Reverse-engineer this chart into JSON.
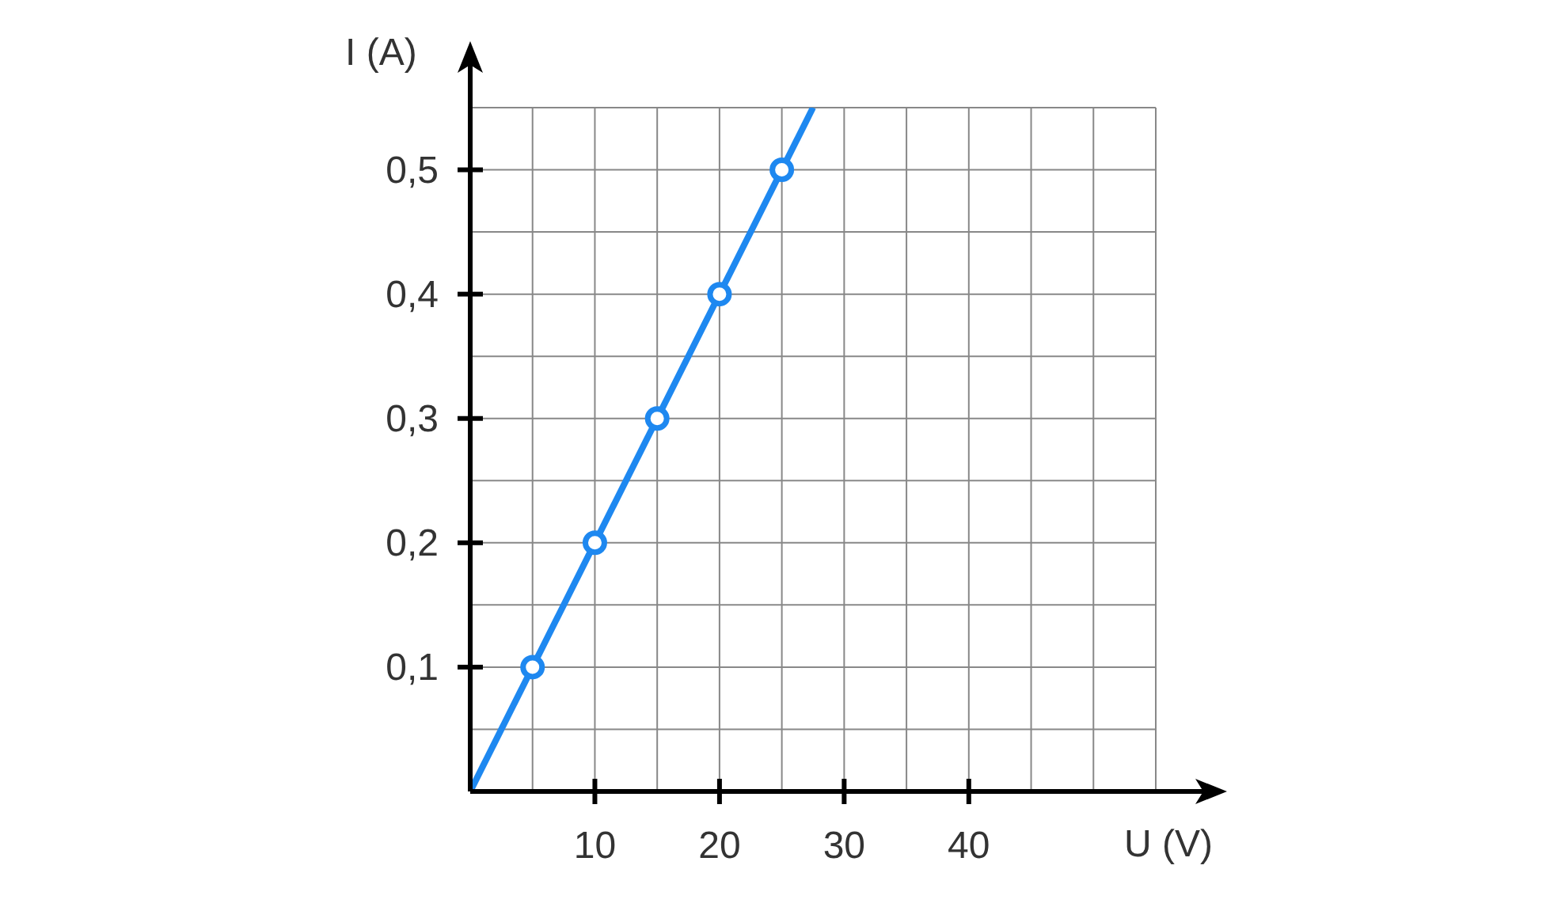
{
  "chart_data": {
    "type": "scatter",
    "xlabel": "U (V)",
    "ylabel": "I (A)",
    "xlim": [
      0,
      55
    ],
    "ylim": [
      0,
      0.55
    ],
    "xticks": [
      {
        "value": 5,
        "label": null
      },
      10,
      {
        "value": 15,
        "label": null
      },
      20,
      {
        "value": 25,
        "label": null
      },
      30,
      {
        "value": 35,
        "label": null
      },
      40,
      {
        "value": 45,
        "label": null
      },
      {
        "value": 50,
        "label": null
      },
      {
        "value": 55,
        "label": null
      }
    ],
    "yticks": [
      {
        "value": 0.05,
        "label": null
      },
      {
        "value": 0.1,
        "label": "0,1"
      },
      {
        "value": 0.15,
        "label": null
      },
      {
        "value": 0.2,
        "label": "0,2"
      },
      {
        "value": 0.25,
        "label": null
      },
      {
        "value": 0.3,
        "label": "0,3"
      },
      {
        "value": 0.35,
        "label": null
      },
      {
        "value": 0.4,
        "label": "0,4"
      },
      {
        "value": 0.45,
        "label": null
      },
      {
        "value": 0.5,
        "label": "0,5"
      },
      {
        "value": 0.55,
        "label": null
      }
    ],
    "grid": true,
    "marker": "circle",
    "series": [
      {
        "color": "#1e88f0",
        "x": [
          5,
          10,
          15,
          20,
          25
        ],
        "values": [
          0.1,
          0.2,
          0.3,
          0.4,
          0.5
        ]
      },
      {
        "type": "line",
        "color": "#1e88f0",
        "x": [
          0,
          27.5
        ],
        "values": [
          0,
          0.55
        ],
        "marker": "none"
      }
    ]
  }
}
